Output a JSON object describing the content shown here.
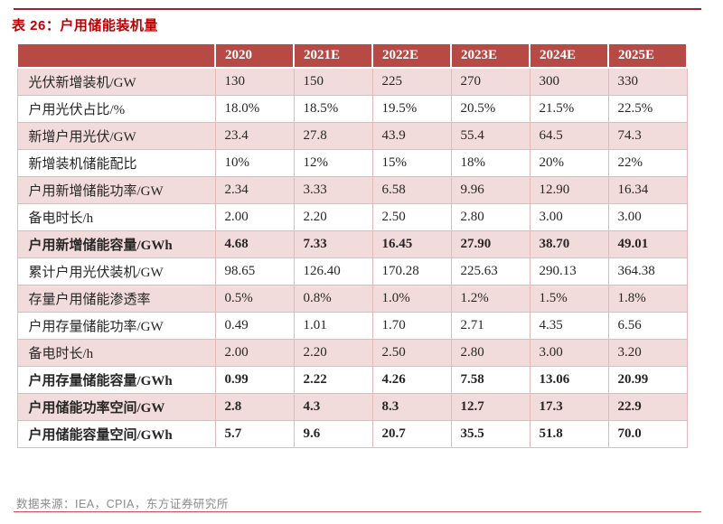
{
  "title": "表 26：户用储能装机量",
  "footer": {
    "source": "数据来源：IEA，CPIA，东方证券研究所"
  },
  "colors": {
    "header_bg": "#b84a46",
    "row_pink": "#f2dcdb",
    "row_white": "#ffffff",
    "grid_line": "#e4b9b7",
    "title_red": "#c00000",
    "top_rule": "#8e2b2a",
    "bottom_rule": "#c0504d",
    "body_text": "#262626",
    "footer_text": "#8c8c8c"
  },
  "chart_data": {
    "type": "table",
    "title": "表 26：户用储能装机量",
    "columns": [
      "",
      "2020",
      "2021E",
      "2022E",
      "2023E",
      "2024E",
      "2025E"
    ],
    "rows": [
      {
        "label": "光伏新增装机/GW",
        "values": [
          "130",
          "150",
          "225",
          "270",
          "300",
          "330"
        ],
        "bold": false
      },
      {
        "label": "户用光伏占比/%",
        "values": [
          "18.0%",
          "18.5%",
          "19.5%",
          "20.5%",
          "21.5%",
          "22.5%"
        ],
        "bold": false
      },
      {
        "label": "新增户用光伏/GW",
        "values": [
          "23.4",
          "27.8",
          "43.9",
          "55.4",
          "64.5",
          "74.3"
        ],
        "bold": false
      },
      {
        "label": "新增装机储能配比",
        "values": [
          "10%",
          "12%",
          "15%",
          "18%",
          "20%",
          "22%"
        ],
        "bold": false
      },
      {
        "label": "户用新增储能功率/GW",
        "values": [
          "2.34",
          "3.33",
          "6.58",
          "9.96",
          "12.90",
          "16.34"
        ],
        "bold": false
      },
      {
        "label": "备电时长/h",
        "values": [
          "2.00",
          "2.20",
          "2.50",
          "2.80",
          "3.00",
          "3.00"
        ],
        "bold": false
      },
      {
        "label": "户用新增储能容量/GWh",
        "values": [
          "4.68",
          "7.33",
          "16.45",
          "27.90",
          "38.70",
          "49.01"
        ],
        "bold": true
      },
      {
        "label": "累计户用光伏装机/GW",
        "values": [
          "98.65",
          "126.40",
          "170.28",
          "225.63",
          "290.13",
          "364.38"
        ],
        "bold": false
      },
      {
        "label": "存量户用储能渗透率",
        "values": [
          "0.5%",
          "0.8%",
          "1.0%",
          "1.2%",
          "1.5%",
          "1.8%"
        ],
        "bold": false
      },
      {
        "label": "户用存量储能功率/GW",
        "values": [
          "0.49",
          "1.01",
          "1.70",
          "2.71",
          "4.35",
          "6.56"
        ],
        "bold": false
      },
      {
        "label": "备电时长/h",
        "values": [
          "2.00",
          "2.20",
          "2.50",
          "2.80",
          "3.00",
          "3.20"
        ],
        "bold": false
      },
      {
        "label": "户用存量储能容量/GWh",
        "values": [
          "0.99",
          "2.22",
          "4.26",
          "7.58",
          "13.06",
          "20.99"
        ],
        "bold": true
      },
      {
        "label": "户用储能功率空间/GW",
        "values": [
          "2.8",
          "4.3",
          "8.3",
          "12.7",
          "17.3",
          "22.9"
        ],
        "bold": true
      },
      {
        "label": "户用储能容量空间/GWh",
        "values": [
          "5.7",
          "9.6",
          "20.7",
          "35.5",
          "51.8",
          "70.0"
        ],
        "bold": true
      }
    ]
  }
}
